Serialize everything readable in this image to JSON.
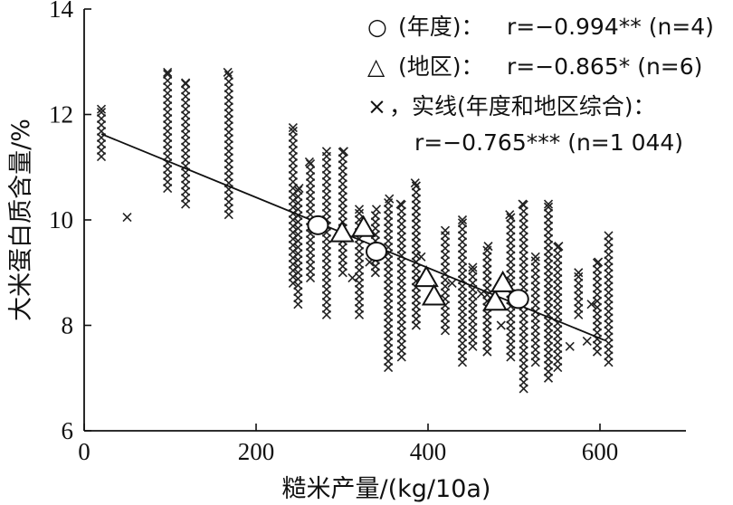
{
  "chart_data": {
    "type": "scatter",
    "xlabel": "糙米产量/(kg/10a)",
    "ylabel": "大米蛋白质含量/%",
    "xlim": [
      0,
      700
    ],
    "ylim": [
      6,
      14
    ],
    "x_ticks": [
      "0",
      "200",
      "400",
      "600"
    ],
    "y_ticks": [
      "6",
      "8",
      "10",
      "12",
      "14"
    ],
    "grid": false,
    "legend_position": "top-right",
    "legend": [
      {
        "symbol": "○",
        "label": "(年度)：",
        "stat": "r=−0.994** (n=4)"
      },
      {
        "symbol": "△",
        "label": "(地区)：",
        "stat": "r=−0.865* (n=6)"
      },
      {
        "symbol": "×",
        "label": "，实线(年度和地区综合)：",
        "stat": "r=−0.765*** (n=1 044)"
      }
    ],
    "fit_line": {
      "x": [
        20,
        605
      ],
      "y": [
        11.63,
        7.72
      ]
    },
    "series": [
      {
        "marker": "circle",
        "x": [
          272,
          340,
          505
        ],
        "y": [
          9.9,
          9.4,
          8.5
        ]
      },
      {
        "marker": "triangle",
        "x": [
          300,
          325,
          398,
          407,
          478,
          487
        ],
        "y": [
          9.75,
          9.85,
          8.9,
          8.55,
          8.45,
          8.8
        ]
      },
      {
        "marker": "x",
        "columns": [
          {
            "x": 20,
            "y": [
              11.2,
              11.6,
              12.1
            ]
          },
          {
            "x": 50,
            "y": [
              10.05
            ]
          },
          {
            "x": 97,
            "y": [
              10.6,
              12.8
            ]
          },
          {
            "x": 118,
            "y": [
              10.3,
              12.6
            ]
          },
          {
            "x": 167,
            "y": [
              10.1,
              12.8
            ]
          },
          {
            "x": 243,
            "y": [
              8.8,
              11.75
            ]
          },
          {
            "x": 250,
            "y": [
              8.4,
              10.6
            ]
          },
          {
            "x": 262,
            "y": [
              8.9,
              11.1
            ]
          },
          {
            "x": 282,
            "y": [
              8.2,
              11.3
            ]
          },
          {
            "x": 302,
            "y": [
              9.0,
              11.3
            ]
          },
          {
            "x": 320,
            "y": [
              8.2,
              10.2
            ]
          },
          {
            "x": 340,
            "y": [
              9.0,
              10.2
            ]
          },
          {
            "x": 355,
            "y": [
              7.2,
              10.4
            ]
          },
          {
            "x": 368,
            "y": [
              7.4,
              10.3
            ]
          },
          {
            "x": 385,
            "y": [
              8.0,
              10.7
            ]
          },
          {
            "x": 420,
            "y": [
              7.9,
              9.8
            ]
          },
          {
            "x": 440,
            "y": [
              7.3,
              10.0
            ]
          },
          {
            "x": 452,
            "y": [
              7.6,
              9.1
            ]
          },
          {
            "x": 470,
            "y": [
              7.5,
              9.5
            ]
          },
          {
            "x": 495,
            "y": [
              7.4,
              10.1
            ]
          },
          {
            "x": 510,
            "y": [
              6.8,
              10.3
            ]
          },
          {
            "x": 525,
            "y": [
              7.3,
              9.3
            ]
          },
          {
            "x": 540,
            "y": [
              7.0,
              10.3
            ]
          },
          {
            "x": 552,
            "y": [
              7.2,
              9.5
            ]
          },
          {
            "x": 575,
            "y": [
              8.2,
              9.0
            ]
          },
          {
            "x": 598,
            "y": [
              7.5,
              9.2
            ]
          },
          {
            "x": 610,
            "y": [
              7.3,
              9.7
            ]
          }
        ],
        "extra_points": [
          {
            "x": 392,
            "y": 9.3
          },
          {
            "x": 428,
            "y": 8.8
          },
          {
            "x": 462,
            "y": 8.6
          },
          {
            "x": 485,
            "y": 8.0
          },
          {
            "x": 565,
            "y": 7.6
          },
          {
            "x": 585,
            "y": 7.7
          },
          {
            "x": 590,
            "y": 8.4
          },
          {
            "x": 312,
            "y": 8.9
          },
          {
            "x": 332,
            "y": 9.2
          }
        ]
      }
    ]
  }
}
